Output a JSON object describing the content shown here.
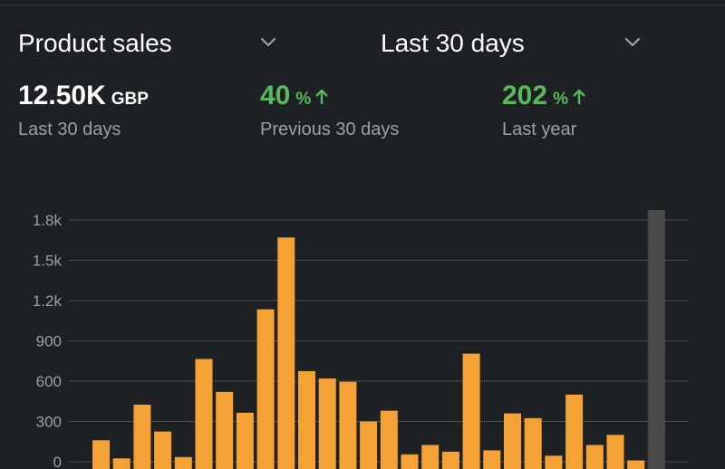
{
  "header": {
    "metric_select": "Product sales",
    "range_select": "Last 30 days"
  },
  "stats": [
    {
      "value": "12.50K",
      "unit": "GBP",
      "label": "Last 30 days",
      "trend": ""
    },
    {
      "value": "40",
      "unit": "%",
      "label": "Previous 30 days",
      "trend": "up"
    },
    {
      "value": "202",
      "unit": "%",
      "label": "Last year",
      "trend": "up"
    }
  ],
  "colors": {
    "bar": "#f4a236",
    "highlight_bar": "#4a4a4a",
    "positive": "#5cb85c",
    "grid": "#4a4d50"
  },
  "icons": [
    "chevron-down-icon",
    "arrow-up-icon"
  ],
  "chart_data": {
    "type": "bar",
    "grid": true,
    "ylim": [
      0,
      1800
    ],
    "yticks": [
      0,
      300,
      600,
      900,
      1200,
      1500,
      1800
    ],
    "ytick_labels": [
      "0",
      "300",
      "600",
      "900",
      "1.2k",
      "1.5k",
      "1.8k"
    ],
    "values": [
      160,
      25,
      425,
      225,
      35,
      765,
      520,
      365,
      1135,
      1670,
      675,
      620,
      595,
      300,
      380,
      55,
      125,
      75,
      805,
      85,
      360,
      325,
      45,
      500,
      125,
      200,
      10,
      1875
    ],
    "highlight_last": true
  }
}
